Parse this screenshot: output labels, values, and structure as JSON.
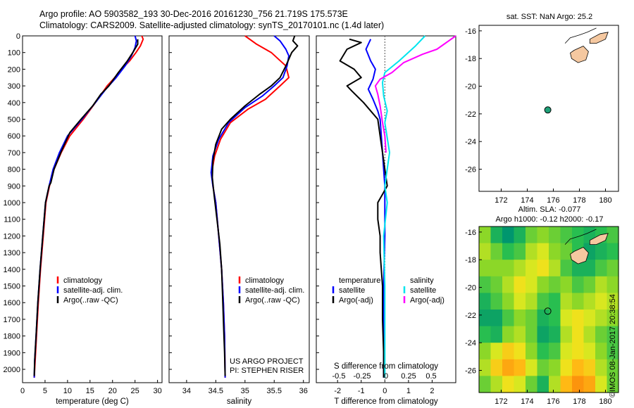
{
  "header": {
    "line1": "Argo profile: AO 5903582_193 30-Dec-2016 20161230_756 21.719S 175.573E",
    "line2": "Climatology: CARS2009. Satellite-adjusted climatology: synTS_20170101.nc (1.4d later)"
  },
  "colors": {
    "climatology": "#ff0000",
    "satellite": "#0000ff",
    "argo": "#000000",
    "salinity_sat": "#00e5ee",
    "salinity_argo": "#ff00ff",
    "land": "#f5c8a0",
    "marker": "#1fa078"
  },
  "chart_data": [
    {
      "id": "temperature",
      "type": "line",
      "xlabel": "temperature (deg C)",
      "ylabel": "",
      "xlim": [
        0,
        31
      ],
      "ylim": [
        2080,
        0
      ],
      "xticks": [
        0,
        5,
        10,
        15,
        20,
        25,
        30
      ],
      "yticks": [
        0,
        100,
        200,
        300,
        400,
        500,
        600,
        700,
        800,
        900,
        1000,
        1100,
        1200,
        1300,
        1400,
        1500,
        1600,
        1700,
        1800,
        1900,
        2000
      ],
      "legend": [
        "climatology",
        "satellite-adj. clim.",
        "Argo(..raw -QC)"
      ],
      "series": [
        {
          "name": "climatology",
          "color": "#ff0000",
          "points": [
            [
              26.5,
              0
            ],
            [
              26.8,
              20
            ],
            [
              26.2,
              60
            ],
            [
              25.2,
              100
            ],
            [
              23.8,
              150
            ],
            [
              22.0,
              200
            ],
            [
              20.5,
              250
            ],
            [
              18.8,
              300
            ],
            [
              16.2,
              400
            ],
            [
              13.5,
              500
            ],
            [
              10.5,
              600
            ],
            [
              8.6,
              700
            ],
            [
              7.0,
              800
            ],
            [
              6.0,
              900
            ],
            [
              5.2,
              1000
            ],
            [
              4.6,
              1200
            ],
            [
              4.0,
              1400
            ],
            [
              3.5,
              1600
            ],
            [
              3.1,
              1800
            ],
            [
              2.8,
              1950
            ],
            [
              2.6,
              2050
            ]
          ]
        },
        {
          "name": "satellite-adj. clim.",
          "color": "#0000ff",
          "points": [
            [
              25.0,
              0
            ],
            [
              25.3,
              30
            ],
            [
              25.0,
              70
            ],
            [
              24.2,
              120
            ],
            [
              22.8,
              180
            ],
            [
              20.8,
              250
            ],
            [
              18.5,
              320
            ],
            [
              16.2,
              400
            ],
            [
              13.2,
              500
            ],
            [
              10.0,
              600
            ],
            [
              8.2,
              700
            ],
            [
              6.8,
              800
            ],
            [
              5.9,
              900
            ],
            [
              5.1,
              1000
            ],
            [
              4.5,
              1200
            ],
            [
              3.9,
              1400
            ],
            [
              3.4,
              1600
            ],
            [
              3.0,
              1800
            ],
            [
              2.7,
              1950
            ],
            [
              2.6,
              2050
            ]
          ]
        },
        {
          "name": "Argo(..raw -QC)",
          "color": "#000000",
          "points": [
            [
              25.6,
              20
            ],
            [
              25.6,
              50
            ],
            [
              24.5,
              100
            ],
            [
              23.3,
              150
            ],
            [
              21.3,
              220
            ],
            [
              19.2,
              300
            ],
            [
              17.4,
              350
            ],
            [
              15.6,
              420
            ],
            [
              13.0,
              500
            ],
            [
              10.5,
              580
            ],
            [
              8.5,
              700
            ],
            [
              7.0,
              800
            ],
            [
              6.3,
              880
            ],
            [
              5.9,
              900
            ],
            [
              5.5,
              950
            ],
            [
              5.1,
              1000
            ],
            [
              4.5,
              1200
            ],
            [
              3.9,
              1400
            ],
            [
              3.4,
              1600
            ],
            [
              3.0,
              1800
            ],
            [
              2.7,
              1950
            ],
            [
              2.6,
              2040
            ]
          ]
        }
      ]
    },
    {
      "id": "salinity",
      "type": "line",
      "xlabel": "salinity",
      "ylabel": "",
      "xlim": [
        33.7,
        36.1
      ],
      "ylim": [
        2080,
        0
      ],
      "xticks": [
        34,
        34.5,
        35,
        35.5,
        36
      ],
      "legend": [
        "climatology",
        "satellite-adj. clim.",
        "Argo(..raw -QC)"
      ],
      "annotation": [
        "US ARGO PROJECT",
        "PI: STEPHEN RISER"
      ],
      "series": [
        {
          "name": "climatology",
          "color": "#ff0000",
          "points": [
            [
              35.0,
              0
            ],
            [
              35.2,
              50
            ],
            [
              35.45,
              100
            ],
            [
              35.7,
              180
            ],
            [
              35.75,
              250
            ],
            [
              35.6,
              300
            ],
            [
              35.35,
              380
            ],
            [
              35.05,
              440
            ],
            [
              34.75,
              520
            ],
            [
              34.58,
              620
            ],
            [
              34.48,
              720
            ],
            [
              34.43,
              820
            ],
            [
              34.45,
              900
            ],
            [
              34.5,
              1000
            ],
            [
              34.55,
              1200
            ],
            [
              34.6,
              1400
            ],
            [
              34.63,
              1600
            ],
            [
              34.65,
              1800
            ],
            [
              34.66,
              2050
            ]
          ]
        },
        {
          "name": "satellite-adj. clim.",
          "color": "#0000ff",
          "points": [
            [
              35.5,
              0
            ],
            [
              35.6,
              30
            ],
            [
              35.7,
              80
            ],
            [
              35.75,
              120
            ],
            [
              35.72,
              180
            ],
            [
              35.65,
              250
            ],
            [
              35.5,
              300
            ],
            [
              35.3,
              360
            ],
            [
              35.0,
              430
            ],
            [
              34.72,
              520
            ],
            [
              34.55,
              620
            ],
            [
              34.45,
              720
            ],
            [
              34.42,
              820
            ],
            [
              34.45,
              900
            ],
            [
              34.5,
              1000
            ],
            [
              34.55,
              1200
            ],
            [
              34.6,
              1400
            ],
            [
              34.63,
              1600
            ],
            [
              34.65,
              1800
            ],
            [
              34.66,
              2050
            ]
          ]
        },
        {
          "name": "Argo(..raw -QC)",
          "color": "#000000",
          "points": [
            [
              35.85,
              0
            ],
            [
              35.82,
              30
            ],
            [
              35.9,
              60
            ],
            [
              35.8,
              100
            ],
            [
              35.7,
              180
            ],
            [
              35.6,
              250
            ],
            [
              35.45,
              300
            ],
            [
              35.25,
              350
            ],
            [
              35.0,
              420
            ],
            [
              34.75,
              500
            ],
            [
              34.6,
              560
            ],
            [
              34.5,
              650
            ],
            [
              34.45,
              750
            ],
            [
              34.44,
              850
            ],
            [
              34.47,
              950
            ],
            [
              34.52,
              1100
            ],
            [
              34.57,
              1250
            ],
            [
              34.6,
              1400
            ],
            [
              34.62,
              1600
            ],
            [
              34.64,
              1800
            ],
            [
              34.65,
              1900
            ],
            [
              34.66,
              2040
            ]
          ]
        }
      ]
    },
    {
      "id": "difference",
      "type": "line",
      "xlabel": "T difference from climatology",
      "xlabel_top": "S difference from climatology",
      "xlim": [
        -2.9,
        3.0
      ],
      "ylim": [
        2080,
        0
      ],
      "xticks": [
        -2,
        -1,
        0,
        1,
        2
      ],
      "xtick_labels": [
        "-2",
        "-1",
        "0",
        "1",
        "2"
      ],
      "sticks": [
        "-0.5",
        "-0.25",
        "0",
        "0.25",
        "0.5"
      ],
      "legend_headers": [
        "temperature",
        "salinity"
      ],
      "legend": [
        "satellite",
        "Argo(-adj)",
        "satellite",
        "Argo(-adj)"
      ],
      "series": [
        {
          "name": "temperature satellite",
          "color": "#0000ff",
          "points": [
            [
              -0.6,
              20
            ],
            [
              -0.8,
              80
            ],
            [
              -0.6,
              150
            ],
            [
              -0.4,
              200
            ],
            [
              -0.5,
              260
            ],
            [
              -0.7,
              320
            ],
            [
              -0.5,
              380
            ],
            [
              -0.3,
              450
            ],
            [
              -0.2,
              500
            ],
            [
              -0.15,
              600
            ],
            [
              -0.1,
              700
            ],
            [
              -0.05,
              800
            ],
            [
              0.0,
              900
            ],
            [
              0.0,
              1200
            ],
            [
              -0.05,
              1500
            ],
            [
              -0.05,
              1800
            ],
            [
              -0.05,
              2050
            ]
          ]
        },
        {
          "name": "temperature Argo(-adj)",
          "color": "#000000",
          "points": [
            [
              -1.5,
              20
            ],
            [
              -1.0,
              40
            ],
            [
              -1.6,
              80
            ],
            [
              -1.9,
              150
            ],
            [
              -1.3,
              200
            ],
            [
              -1.0,
              250
            ],
            [
              -1.6,
              300
            ],
            [
              -1.4,
              330
            ],
            [
              -0.9,
              400
            ],
            [
              -0.6,
              450
            ],
            [
              -0.3,
              500
            ],
            [
              -0.2,
              600
            ],
            [
              -0.1,
              700
            ],
            [
              0.0,
              800
            ],
            [
              0.1,
              900
            ],
            [
              -0.1,
              950
            ],
            [
              -0.3,
              1000
            ],
            [
              -0.3,
              1100
            ],
            [
              -0.2,
              1200
            ],
            [
              -0.2,
              1300
            ],
            [
              -0.15,
              1400
            ],
            [
              -0.1,
              1500
            ],
            [
              -0.1,
              1700
            ],
            [
              -0.05,
              1900
            ],
            [
              -0.05,
              2050
            ]
          ]
        },
        {
          "name": "salinity satellite",
          "color": "#00e5ee",
          "points": [
            [
              1.7,
              0
            ],
            [
              1.3,
              60
            ],
            [
              0.6,
              150
            ],
            [
              0.0,
              220
            ],
            [
              -0.1,
              280
            ],
            [
              -0.05,
              360
            ],
            [
              0.1,
              450
            ],
            [
              0.0,
              520
            ],
            [
              0.2,
              700
            ],
            [
              0.0,
              900
            ],
            [
              0.1,
              1000
            ],
            [
              -0.05,
              1200
            ],
            [
              0.0,
              1500
            ],
            [
              0.0,
              1800
            ],
            [
              0.0,
              2050
            ]
          ]
        },
        {
          "name": "salinity Argo(-adj)",
          "color": "#ff00ff",
          "points": [
            [
              3.0,
              0
            ],
            [
              2.6,
              40
            ],
            [
              2.2,
              80
            ],
            [
              1.6,
              110
            ],
            [
              0.8,
              160
            ],
            [
              0.3,
              220
            ],
            [
              -0.2,
              260
            ],
            [
              -0.4,
              300
            ],
            [
              -0.3,
              350
            ],
            [
              -0.2,
              420
            ],
            [
              -0.1,
              520
            ],
            [
              0.0,
              600
            ],
            [
              0.05,
              700
            ]
          ]
        }
      ]
    },
    {
      "id": "map_sst",
      "type": "scatter",
      "title": "sat. SST: NaN Argo: 25.2",
      "xlim": [
        170.3,
        181.0
      ],
      "ylim": [
        -27.6,
        -15.6
      ],
      "xticks": [
        172,
        174,
        176,
        178,
        180
      ],
      "yticks": [
        -16,
        -18,
        -20,
        -22,
        -24,
        -26
      ],
      "marker": {
        "lon": 175.573,
        "lat": -21.719
      }
    },
    {
      "id": "map_sla",
      "type": "heatmap",
      "title1": "Altim. SLA: -0.077",
      "title2": "Argo h1000: -0.12 h2000: -0.17",
      "xlim": [
        170.3,
        181.0
      ],
      "ylim": [
        -27.6,
        -15.6
      ],
      "xticks": [
        172,
        174,
        176,
        178,
        180
      ],
      "yticks": [
        -16,
        -18,
        -20,
        -22,
        -24,
        -26
      ],
      "marker": {
        "lon": 175.573,
        "lat": -21.719
      },
      "sla_grid": [
        [
          0.2,
          -0.2,
          -0.4,
          -0.2,
          0.1,
          0.2,
          0.1,
          0.0,
          -0.1,
          -0.2,
          -0.1,
          0.0
        ],
        [
          0.3,
          0.1,
          -0.1,
          0.0,
          0.3,
          0.4,
          0.2,
          0.1,
          -0.1,
          -0.3,
          -0.2,
          -0.1
        ],
        [
          0.2,
          0.2,
          0.2,
          0.3,
          0.4,
          0.5,
          0.3,
          0.0,
          -0.2,
          -0.2,
          0.0,
          0.1
        ],
        [
          0.0,
          0.1,
          0.3,
          0.5,
          0.4,
          0.2,
          0.1,
          0.2,
          0.0,
          0.1,
          0.3,
          0.2
        ],
        [
          -0.2,
          0.0,
          0.2,
          0.4,
          0.3,
          0.0,
          -0.1,
          0.3,
          0.2,
          0.3,
          0.4,
          0.3
        ],
        [
          -0.3,
          -0.3,
          0.0,
          0.2,
          0.1,
          -0.2,
          -0.1,
          0.4,
          0.5,
          0.4,
          0.3,
          0.2
        ],
        [
          -0.1,
          -0.2,
          0.2,
          0.3,
          0.1,
          -0.3,
          -0.2,
          0.3,
          0.5,
          0.3,
          0.1,
          0.0
        ],
        [
          0.2,
          0.4,
          0.6,
          0.5,
          0.2,
          -0.1,
          0.0,
          0.4,
          0.5,
          0.4,
          0.2,
          0.0
        ],
        [
          0.3,
          0.6,
          0.8,
          0.7,
          0.4,
          0.1,
          0.2,
          0.5,
          0.7,
          0.6,
          0.3,
          0.1
        ],
        [
          0.1,
          0.3,
          0.5,
          0.4,
          0.1,
          -0.2,
          0.3,
          0.7,
          0.9,
          0.8,
          0.4,
          0.1
        ]
      ],
      "side_label": "©IMOS 08-Jan-2017 20:38:54"
    }
  ]
}
